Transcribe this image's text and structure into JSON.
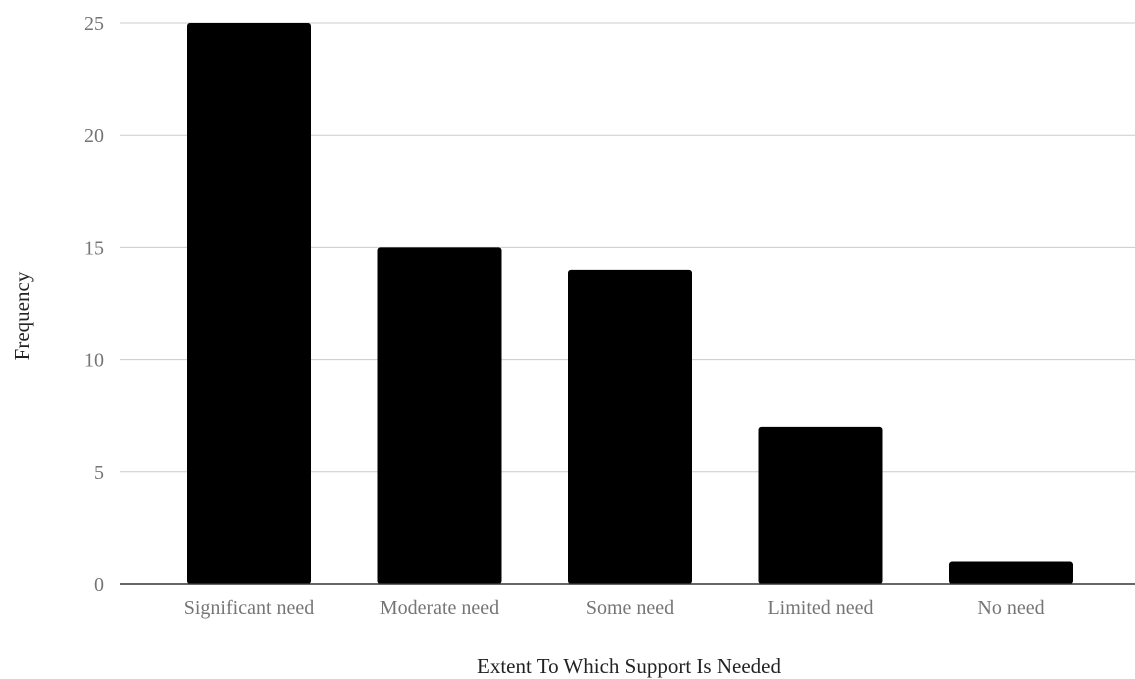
{
  "chart_data": {
    "type": "bar",
    "categories": [
      "Significant need",
      "Moderate need",
      "Some need",
      "Limited need",
      "No need"
    ],
    "series": [
      {
        "values": [
          25,
          15,
          14,
          7,
          1
        ]
      }
    ],
    "xlabel": "Extent To Which Support Is Needed",
    "ylabel": "Frequency",
    "ylim": [
      0,
      25
    ],
    "yticks": [
      0,
      5,
      10,
      15,
      20,
      25
    ],
    "grid": true,
    "legend": "none",
    "colors": {
      "bar": "#000000",
      "grid": "#cccccc",
      "tick_text": "#757575"
    }
  }
}
